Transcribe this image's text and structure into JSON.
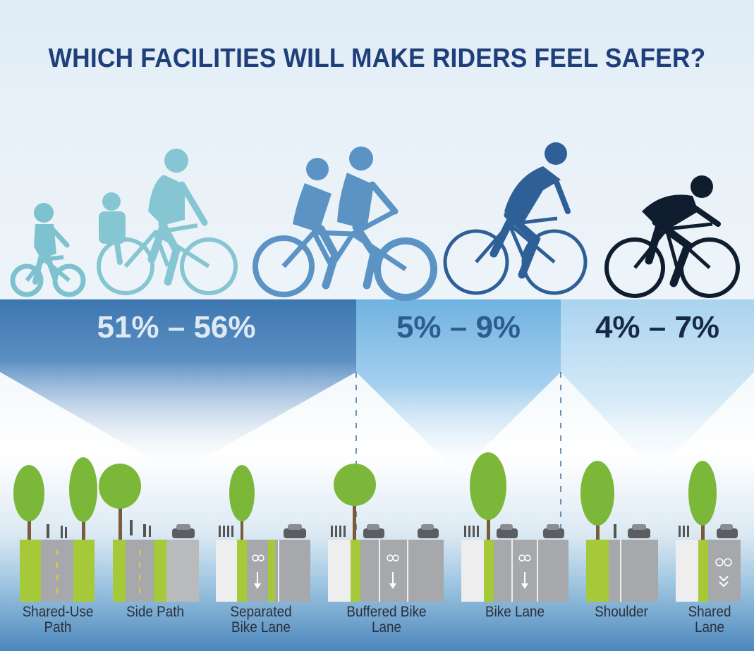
{
  "title": "WHICH FACILITIES WILL MAKE RIDERS FEEL SAFER?",
  "groups": [
    {
      "range": "51% – 56%",
      "color": "#e6eef6"
    },
    {
      "range": "5% – 9%",
      "color": "#2d5d8d"
    },
    {
      "range": "4% – 7%",
      "color": "#162a43"
    }
  ],
  "facilities": [
    {
      "line1": "Shared-Use",
      "line2": "Path"
    },
    {
      "line1": "Side Path",
      "line2": ""
    },
    {
      "line1": "Separated",
      "line2": "Bike Lane"
    },
    {
      "line1": "Buffered Bike",
      "line2": "Lane"
    },
    {
      "line1": "Bike Lane",
      "line2": ""
    },
    {
      "line1": "Shoulder",
      "line2": ""
    },
    {
      "line1": "Shared",
      "line2": "Lane"
    }
  ],
  "colors": {
    "title": "#1f3f7a",
    "rider_light": "#7fc2cf",
    "rider_mid": "#5b93c4",
    "rider_blue": "#2f5f97",
    "rider_dark": "#0f1d2e",
    "green_lane": "#a6c93a",
    "road": "#a6a8ab",
    "tree": "#7bb83a"
  },
  "icons": [
    "child-cyclist-icon",
    "parent-child-cyclist-icon",
    "tandem-cyclists-icon",
    "commuter-cyclist-icon",
    "racing-cyclist-icon",
    "tree-icon",
    "car-icon",
    "pedestrian-icon",
    "bike-symbol-icon",
    "arrow-icon",
    "sharrow-chevron-icon"
  ]
}
